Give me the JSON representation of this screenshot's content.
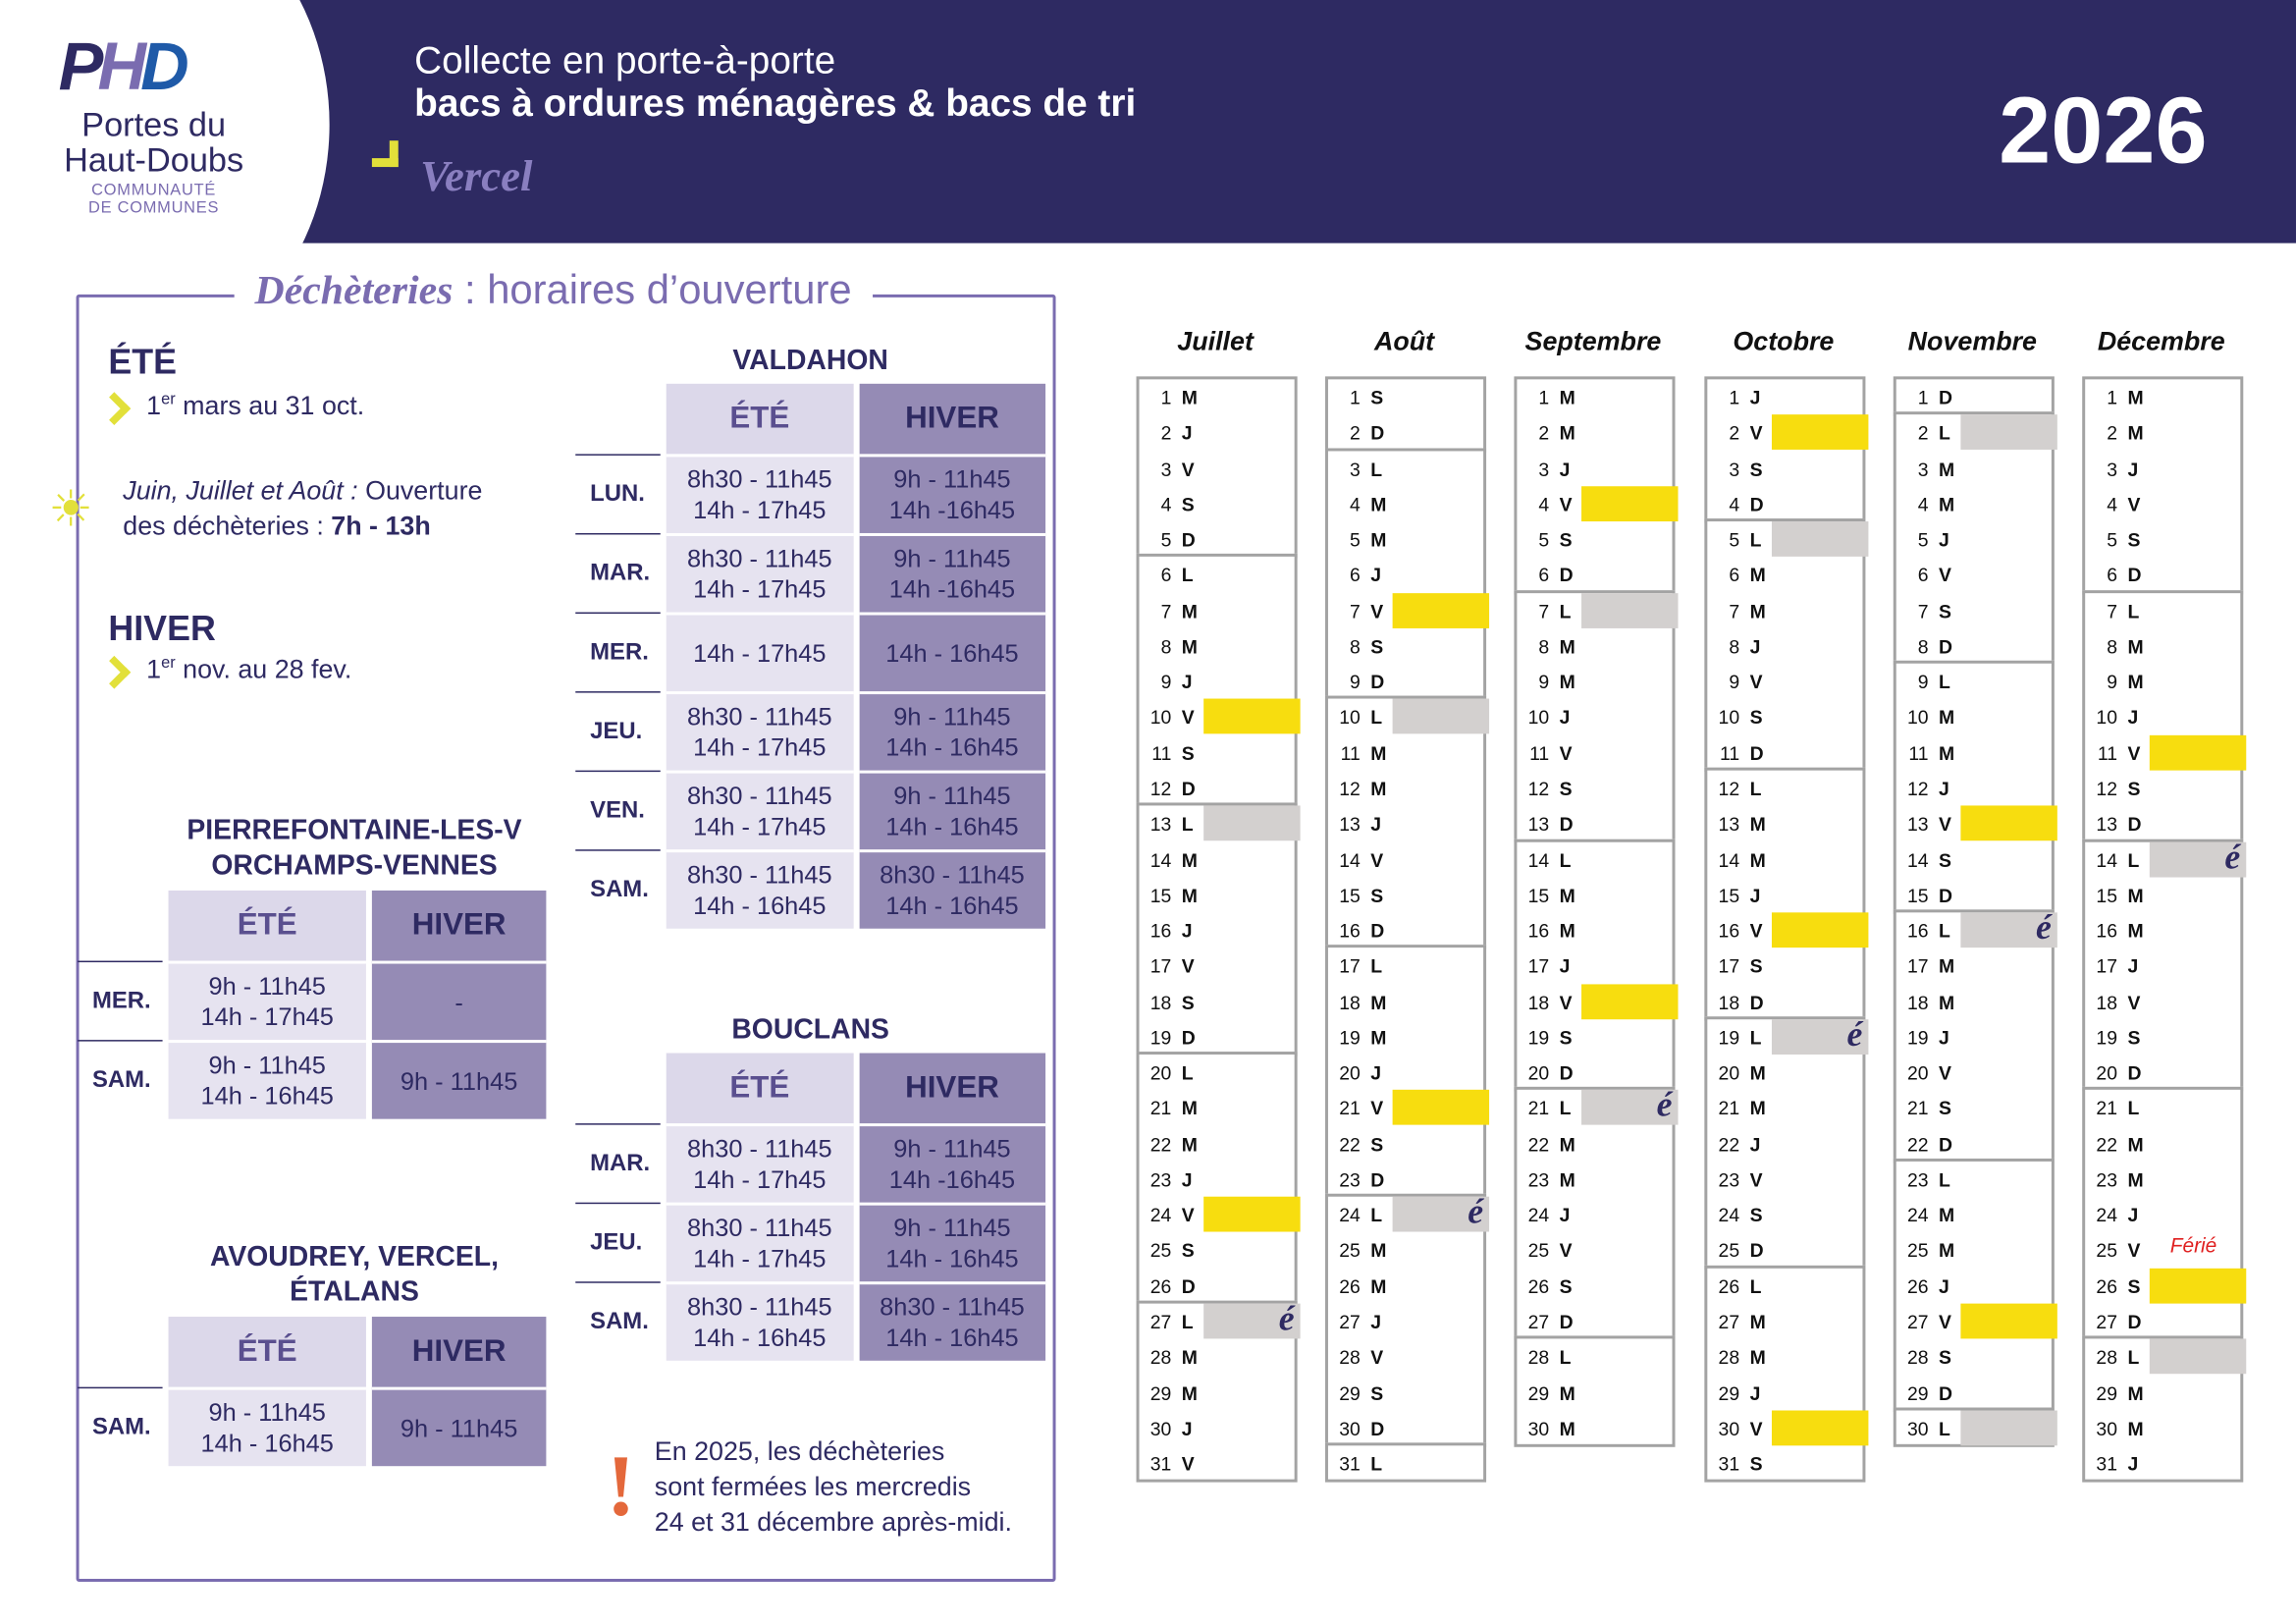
{
  "header": {
    "logo_text": "PHD",
    "org_name_1": "Portes du",
    "org_name_2": "Haut-Doubs",
    "org_sub_1": "COMMUNAUTÉ",
    "org_sub_2": "DE COMMUNES",
    "title_line1": "Collecte en porte-à-porte",
    "title_line2": "bacs à ordures ménagères & bacs de tri",
    "town": "Vercel",
    "year": "2026"
  },
  "dechetteries": {
    "title_bold": "Déchèteries",
    "title_rest": " : horaires d’ouverture",
    "ete_label": "ÉTÉ",
    "ete_dates_pre": "1",
    "ete_dates_sup": "er",
    "ete_dates_post": " mars au 31 oct.",
    "summer_note_italic": "Juin, Juillet et Août :",
    "summer_note_rest": " Ouverture",
    "summer_note_line2": "des déchèteries : ",
    "summer_note_hours": "7h - 13h",
    "hiver_label": "HIVER",
    "hiver_dates_pre": "1",
    "hiver_dates_sup": "er",
    "hiver_dates_post": " nov. au 28 fev.",
    "warning_line1": "En 2025, les déchèteries",
    "warning_line2": "sont fermées les mercredis",
    "warning_line3": "24 et 31 décembre après-midi."
  },
  "tables": [
    {
      "name": "VALDAHON",
      "head": [
        "ÉTÉ",
        "HIVER"
      ],
      "rows": [
        [
          "LUN.",
          "8h30 - 11h45",
          "14h - 17h45",
          "9h - 11h45",
          "14h -16h45"
        ],
        [
          "MAR.",
          "8h30 - 11h45",
          "14h - 17h45",
          "9h - 11h45",
          "14h -16h45"
        ],
        [
          "MER.",
          "14h - 17h45",
          "",
          "14h - 16h45",
          ""
        ],
        [
          "JEU.",
          "8h30 - 11h45",
          "14h - 17h45",
          "9h - 11h45",
          "14h - 16h45"
        ],
        [
          "VEN.",
          "8h30 - 11h45",
          "14h - 17h45",
          "9h - 11h45",
          "14h - 16h45"
        ],
        [
          "SAM.",
          "8h30 - 11h45",
          "14h - 16h45",
          "8h30 - 11h45",
          "14h - 16h45"
        ]
      ]
    },
    {
      "name": "BOUCLANS",
      "head": [
        "ÉTÉ",
        "HIVER"
      ],
      "rows": [
        [
          "MAR.",
          "8h30 - 11h45",
          "14h - 17h45",
          "9h - 11h45",
          "14h -16h45"
        ],
        [
          "JEU.",
          "8h30 - 11h45",
          "14h - 17h45",
          "9h - 11h45",
          "14h - 16h45"
        ],
        [
          "SAM.",
          "8h30 - 11h45",
          "14h - 16h45",
          "8h30 - 11h45",
          "14h - 16h45"
        ]
      ]
    },
    {
      "name": "PIERREFONTAINE-LES-V",
      "name2": "ORCHAMPS-VENNES",
      "head": [
        "ÉTÉ",
        "HIVER"
      ],
      "rows": [
        [
          "MER.",
          "9h - 11h45",
          "14h - 17h45",
          "-",
          ""
        ],
        [
          "SAM.",
          "9h - 11h45",
          "14h - 16h45",
          "9h - 11h45",
          ""
        ]
      ]
    },
    {
      "name": "AVOUDREY, VERCEL,",
      "name2": "ÉTALANS",
      "head": [
        "ÉTÉ",
        "HIVER"
      ],
      "rows": [
        [
          "SAM.",
          "9h - 11h45",
          "14h - 16h45",
          "9h - 11h45",
          ""
        ]
      ]
    }
  ],
  "calendar": {
    "colors": {
      "tri": "#f7dd0f",
      "om": "#d3d0cf"
    },
    "ferie_label": "Férié",
    "e_symbol": "é",
    "weekdays": [
      "L",
      "M",
      "M",
      "J",
      "V",
      "S",
      "D"
    ],
    "months": [
      {
        "name": "Juillet",
        "start": 2,
        "days": 31,
        "yellow": [
          10,
          24
        ],
        "grey": [
          13,
          27
        ],
        "e": [
          27
        ]
      },
      {
        "name": "Août",
        "start": 5,
        "days": 31,
        "yellow": [
          7,
          21
        ],
        "grey": [
          10,
          24
        ],
        "e": [
          24
        ]
      },
      {
        "name": "Septembre",
        "start": 1,
        "days": 30,
        "yellow": [
          4,
          18
        ],
        "grey": [
          7,
          21
        ],
        "e": [
          21
        ]
      },
      {
        "name": "Octobre",
        "start": 3,
        "days": 31,
        "yellow": [
          2,
          16,
          30
        ],
        "grey": [
          5,
          19
        ],
        "e": [
          19
        ]
      },
      {
        "name": "Novembre",
        "start": 6,
        "days": 30,
        "yellow": [
          13,
          27
        ],
        "grey": [
          2,
          16,
          30
        ],
        "e": [
          16
        ]
      },
      {
        "name": "Décembre",
        "start": 1,
        "days": 31,
        "yellow": [
          11,
          26
        ],
        "grey": [
          14,
          28
        ],
        "e": [
          14
        ],
        "ferie": 26
      }
    ]
  }
}
